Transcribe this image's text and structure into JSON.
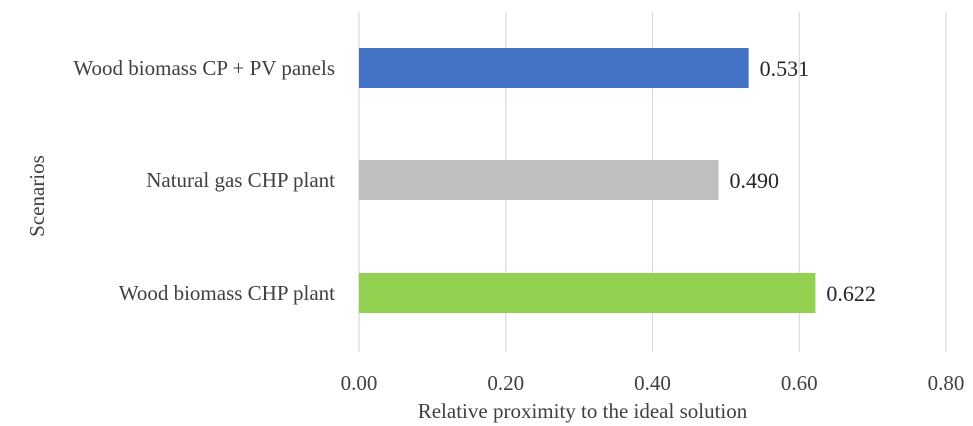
{
  "chart_data": {
    "type": "bar",
    "orientation": "horizontal",
    "categories": [
      "Wood biomass CP + PV panels",
      "Natural gas CHP plant",
      "Wood biomass CHP plant"
    ],
    "values": [
      0.531,
      0.49,
      0.622
    ],
    "value_labels": [
      "0.531",
      "0.490",
      "0.622"
    ],
    "colors": [
      "#4472c4",
      "#bfbfbf",
      "#92d050"
    ],
    "xlabel": "Relative proximity to the ideal solution",
    "ylabel": "Scenarios",
    "xlim": [
      0,
      0.8
    ],
    "xticks": [
      0,
      0.2,
      0.4,
      0.6,
      0.8
    ],
    "xtick_labels": [
      "0.00",
      "0.20",
      "0.40",
      "0.60",
      "0.80"
    ],
    "grid": "vertical",
    "legend": "none"
  }
}
